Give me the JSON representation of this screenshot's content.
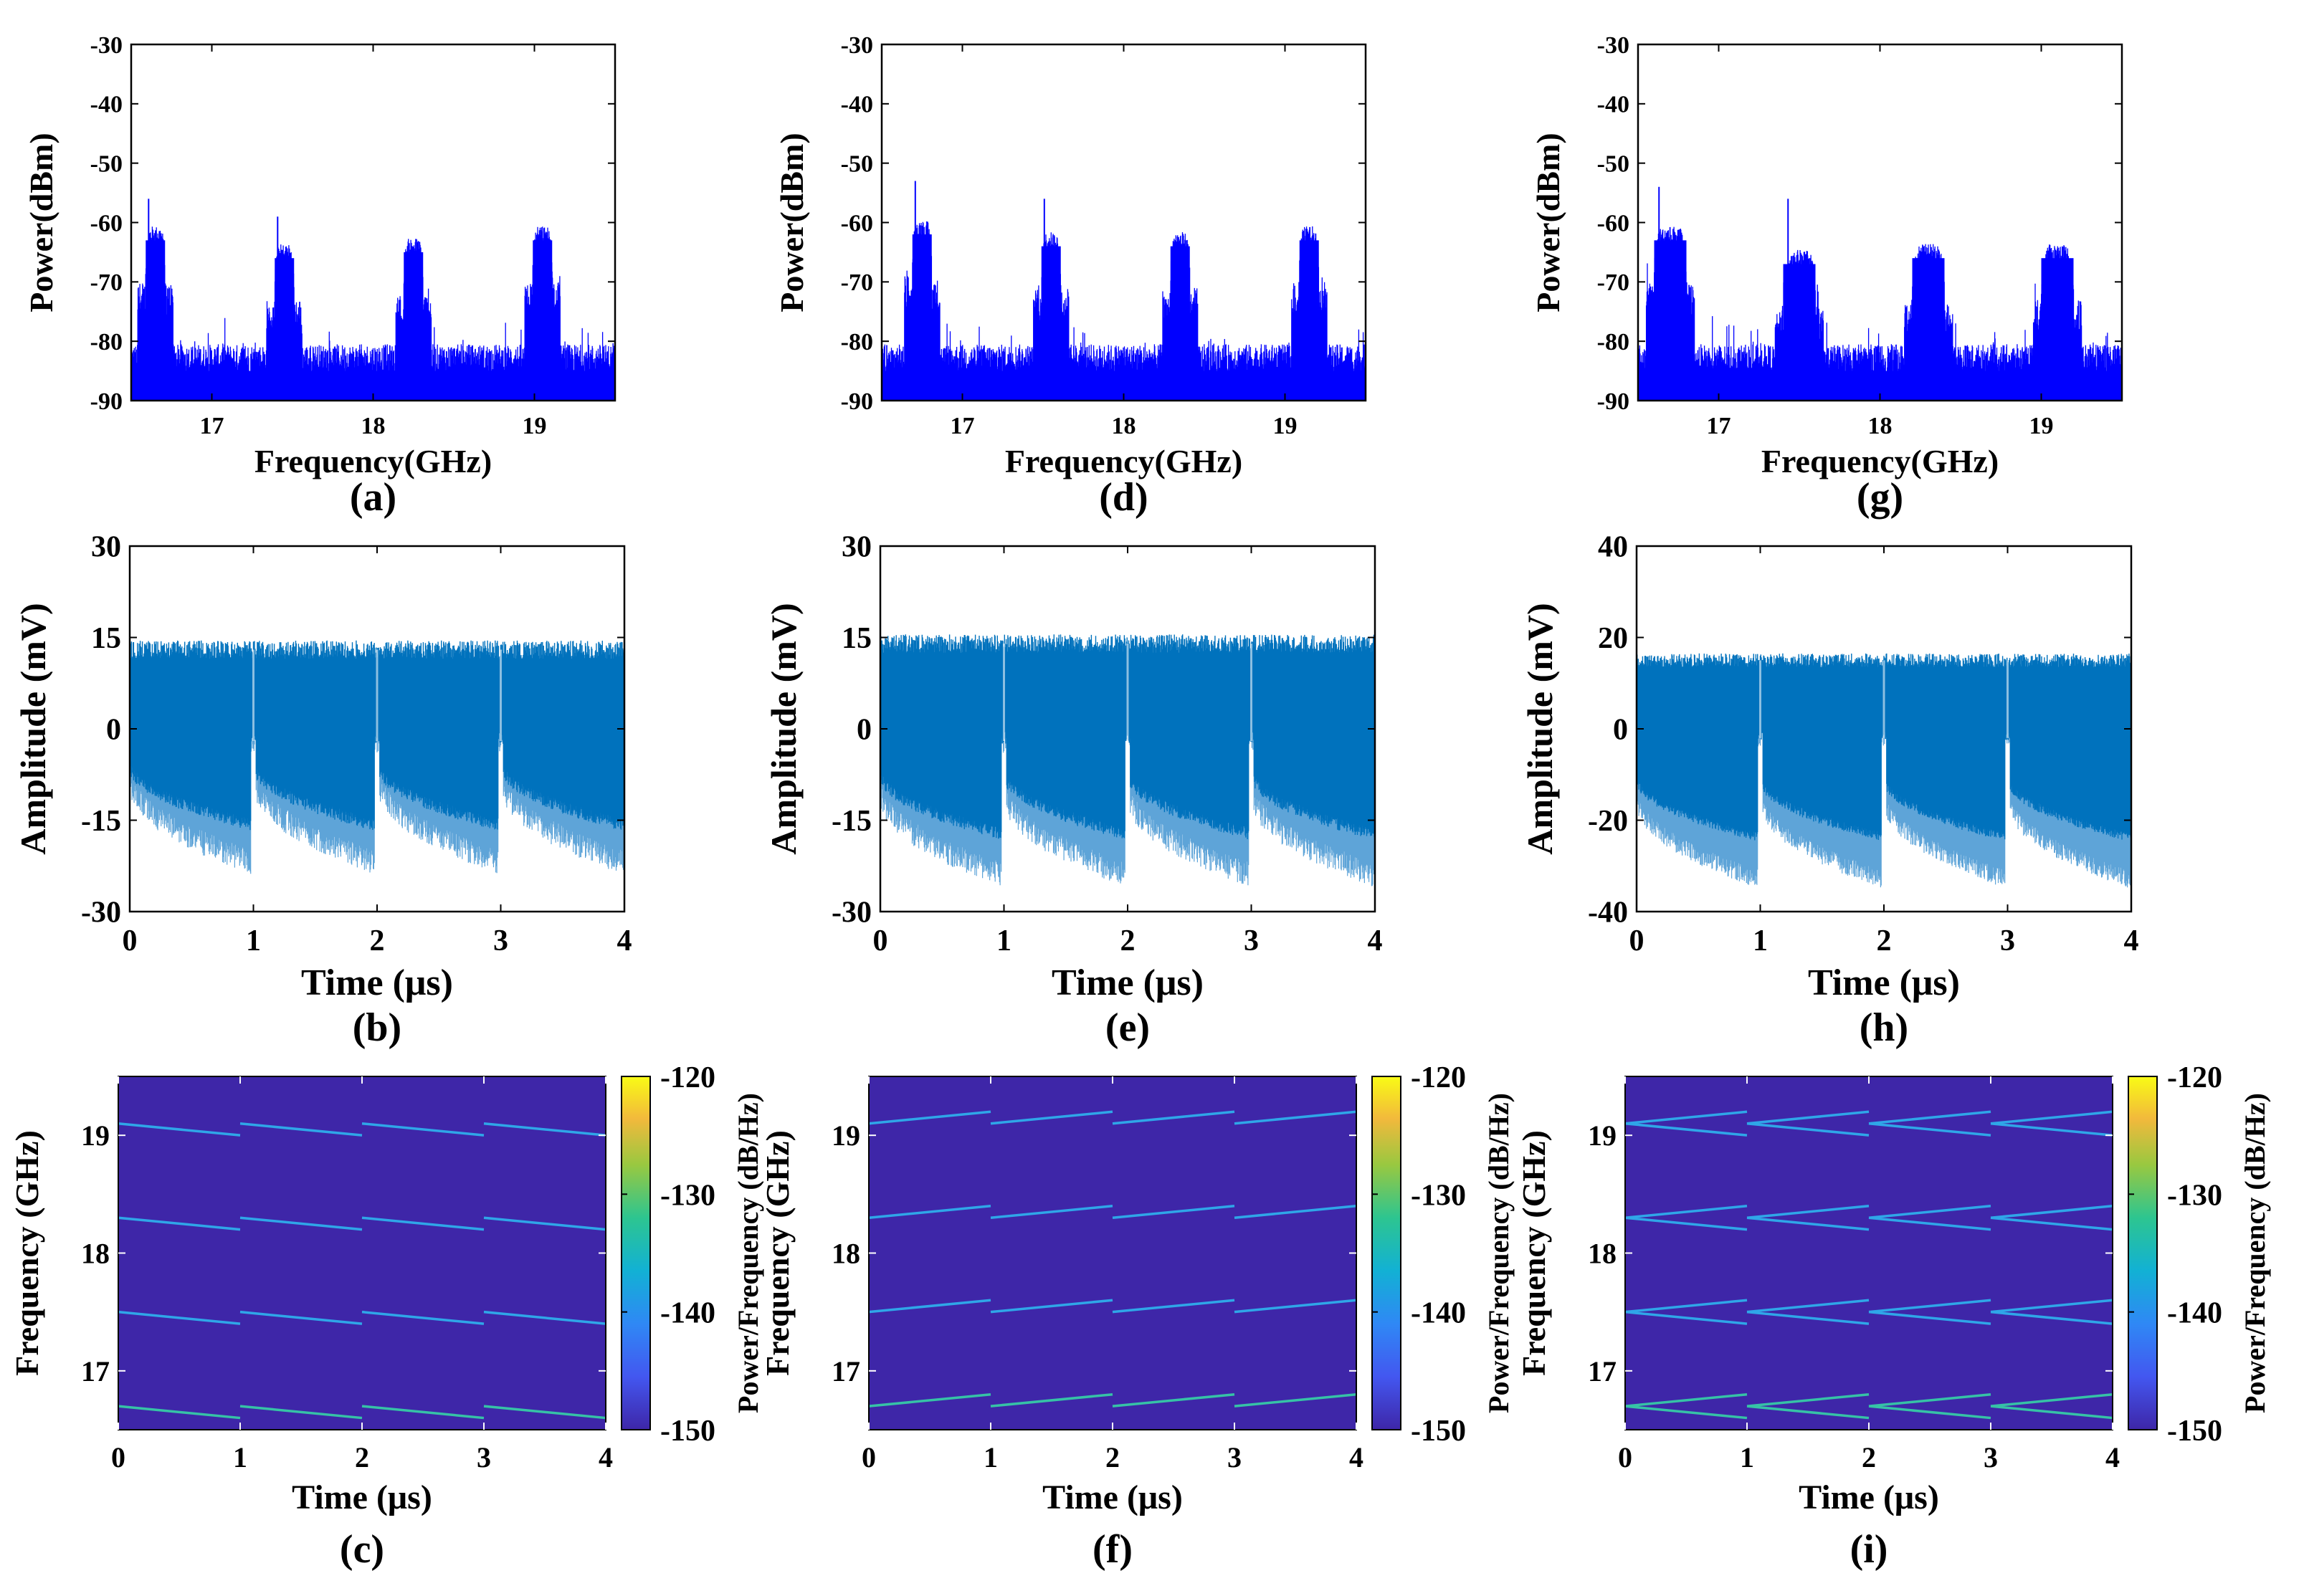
{
  "figure": {
    "panel_order": [
      "a",
      "b",
      "c",
      "d",
      "e",
      "f",
      "g",
      "h",
      "i"
    ]
  },
  "colors": {
    "spectrum": "#0000ff",
    "waveform": "#0072bd",
    "waveform_light": "#5ea4d8",
    "axis": "#000000",
    "map_bg": "#3e26a8",
    "map_line": "#2fa6e8",
    "map_line_hot": "#36c2a6"
  },
  "chart_data": [
    {
      "id": "a",
      "type": "line",
      "kind": "spectrum",
      "caption": "(a)",
      "xlabel": "Frequency(GHz)",
      "ylabel": "Power(dBm)",
      "xlim": [
        16.5,
        19.5
      ],
      "ylim": [
        -90,
        -30
      ],
      "xticks": [
        17,
        18,
        19
      ],
      "yticks": [
        -30,
        -40,
        -50,
        -60,
        -70,
        -80,
        -90
      ],
      "noise_floor": -83,
      "bands": [
        {
          "center": 16.65,
          "width": 0.12,
          "level": -63,
          "spur": -56
        },
        {
          "center": 17.45,
          "width": 0.12,
          "level": -66,
          "spur": -59
        },
        {
          "center": 18.25,
          "width": 0.12,
          "level": -65,
          "spur": -65
        },
        {
          "center": 19.05,
          "width": 0.12,
          "level": -63,
          "spur": -63
        }
      ]
    },
    {
      "id": "b",
      "type": "line",
      "kind": "waveform",
      "caption": "(b)",
      "xlabel": "Time (μs)",
      "ylabel": "Amplitude (mV)",
      "xlim": [
        0,
        4
      ],
      "ylim": [
        -30,
        30
      ],
      "xticks": [
        0,
        1,
        2,
        3,
        4
      ],
      "yticks": [
        30,
        15,
        0,
        -15,
        -30
      ],
      "upper": 13,
      "lower_start": -8,
      "lower_end": -22,
      "segments": 4
    },
    {
      "id": "c",
      "type": "heatmap",
      "kind": "spectrogram",
      "caption": "(c)",
      "xlabel": "Time (μs)",
      "ylabel": "Frequency (GHz)",
      "xlim": [
        0,
        4
      ],
      "ylim": [
        16.5,
        19.5
      ],
      "xticks": [
        0,
        1,
        2,
        3,
        4
      ],
      "yticks": [
        17,
        18,
        19
      ],
      "colorbar": {
        "label": "Power/Frequency (dB/Hz)",
        "ticks": [
          -120,
          -130,
          -140,
          -150
        ],
        "range": [
          -150,
          -120
        ]
      },
      "lines": [
        {
          "base": 16.7,
          "direction": "down",
          "span": 0.1
        },
        {
          "base": 17.5,
          "direction": "down",
          "span": 0.1
        },
        {
          "base": 18.3,
          "direction": "down",
          "span": 0.1
        },
        {
          "base": 19.1,
          "direction": "down",
          "span": 0.1
        }
      ]
    },
    {
      "id": "d",
      "type": "line",
      "kind": "spectrum",
      "caption": "(d)",
      "xlabel": "Frequency(GHz)",
      "ylabel": "Power(dBm)",
      "xlim": [
        16.5,
        19.5
      ],
      "ylim": [
        -90,
        -30
      ],
      "xticks": [
        17,
        18,
        19
      ],
      "yticks": [
        -30,
        -40,
        -50,
        -60,
        -70,
        -80,
        -90
      ],
      "noise_floor": -83,
      "bands": [
        {
          "center": 16.75,
          "width": 0.12,
          "level": -62,
          "spur": -53
        },
        {
          "center": 17.55,
          "width": 0.12,
          "level": -64,
          "spur": -56
        },
        {
          "center": 18.35,
          "width": 0.12,
          "level": -64,
          "spur": -64
        },
        {
          "center": 19.15,
          "width": 0.12,
          "level": -63,
          "spur": -63
        }
      ]
    },
    {
      "id": "e",
      "type": "line",
      "kind": "waveform",
      "caption": "(e)",
      "xlabel": "Time (μs)",
      "ylabel": "Amplitude (mV)",
      "xlim": [
        0,
        4
      ],
      "ylim": [
        -30,
        30
      ],
      "xticks": [
        0,
        1,
        2,
        3,
        4
      ],
      "yticks": [
        30,
        15,
        0,
        -15,
        -30
      ],
      "upper": 14,
      "lower_start": -10,
      "lower_end": -24,
      "segments": 4
    },
    {
      "id": "f",
      "type": "heatmap",
      "kind": "spectrogram",
      "caption": "(f)",
      "xlabel": "Time (μs)",
      "ylabel": "Frequency (GHz)",
      "xlim": [
        0,
        4
      ],
      "ylim": [
        16.5,
        19.5
      ],
      "xticks": [
        0,
        1,
        2,
        3,
        4
      ],
      "yticks": [
        17,
        18,
        19
      ],
      "colorbar": {
        "label": "Power/Frequency (dB/Hz)",
        "ticks": [
          -120,
          -130,
          -140,
          -150
        ],
        "range": [
          -150,
          -120
        ]
      },
      "lines": [
        {
          "base": 16.7,
          "direction": "up",
          "span": 0.1
        },
        {
          "base": 17.5,
          "direction": "up",
          "span": 0.1
        },
        {
          "base": 18.3,
          "direction": "up",
          "span": 0.1
        },
        {
          "base": 19.1,
          "direction": "up",
          "span": 0.1
        }
      ]
    },
    {
      "id": "g",
      "type": "line",
      "kind": "spectrum",
      "caption": "(g)",
      "xlabel": "Frequency(GHz)",
      "ylabel": "Power(dBm)",
      "xlim": [
        16.5,
        19.5
      ],
      "ylim": [
        -90,
        -30
      ],
      "xticks": [
        17,
        18,
        19
      ],
      "yticks": [
        -30,
        -40,
        -50,
        -60,
        -70,
        -80,
        -90
      ],
      "noise_floor": -83,
      "bands": [
        {
          "center": 16.7,
          "width": 0.2,
          "level": -63,
          "spur": -54
        },
        {
          "center": 17.5,
          "width": 0.2,
          "level": -67,
          "spur": -56
        },
        {
          "center": 18.3,
          "width": 0.2,
          "level": -66,
          "spur": -66
        },
        {
          "center": 19.1,
          "width": 0.2,
          "level": -66,
          "spur": -66
        }
      ]
    },
    {
      "id": "h",
      "type": "line",
      "kind": "waveform",
      "caption": "(h)",
      "xlabel": "Time (μs)",
      "ylabel": "Amplitude (mV)",
      "xlim": [
        0,
        4
      ],
      "ylim": [
        -40,
        40
      ],
      "xticks": [
        0,
        1,
        2,
        3,
        4
      ],
      "yticks": [
        40,
        20,
        0,
        -20,
        -40
      ],
      "upper": 15,
      "lower_start": -15,
      "lower_end": -33,
      "segments": 4
    },
    {
      "id": "i",
      "type": "heatmap",
      "kind": "spectrogram",
      "caption": "(i)",
      "xlabel": "Time (μs)",
      "ylabel": "Frequency (GHz)",
      "xlim": [
        0,
        4
      ],
      "ylim": [
        16.5,
        19.5
      ],
      "xticks": [
        0,
        1,
        2,
        3,
        4
      ],
      "yticks": [
        17,
        18,
        19
      ],
      "colorbar": {
        "label": "Power/Frequency (dB/Hz)",
        "ticks": [
          -120,
          -130,
          -140,
          -150
        ],
        "range": [
          -150,
          -120
        ]
      },
      "lines": [
        {
          "base": 16.7,
          "direction": "both",
          "span": 0.1
        },
        {
          "base": 17.5,
          "direction": "both",
          "span": 0.1
        },
        {
          "base": 18.3,
          "direction": "both",
          "span": 0.1
        },
        {
          "base": 19.1,
          "direction": "both",
          "span": 0.1
        }
      ]
    }
  ]
}
